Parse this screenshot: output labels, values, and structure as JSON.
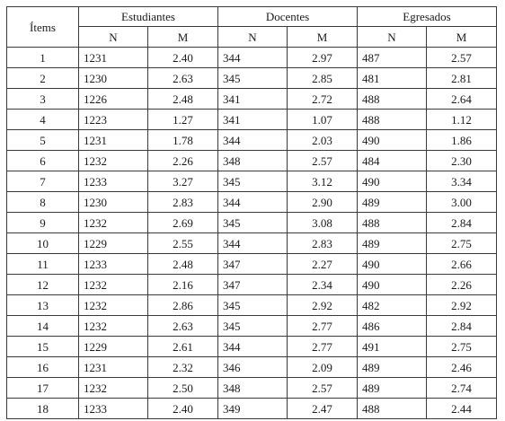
{
  "header": {
    "items_label": "Ítems",
    "groups": [
      "Estudiantes",
      "Docentes",
      "Egresados"
    ],
    "sub_n": "N",
    "sub_m": "M"
  },
  "rows": [
    {
      "item": "1",
      "est_n": "1231",
      "est_m": "2.40",
      "doc_n": "344",
      "doc_m": "2.97",
      "egr_n": "487",
      "egr_m": "2.57"
    },
    {
      "item": "2",
      "est_n": "1230",
      "est_m": "2.63",
      "doc_n": "345",
      "doc_m": "2.85",
      "egr_n": "481",
      "egr_m": "2.81"
    },
    {
      "item": "3",
      "est_n": "1226",
      "est_m": "2.48",
      "doc_n": "341",
      "doc_m": "2.72",
      "egr_n": "488",
      "egr_m": "2.64"
    },
    {
      "item": "4",
      "est_n": "1223",
      "est_m": "1.27",
      "doc_n": "341",
      "doc_m": "1.07",
      "egr_n": "488",
      "egr_m": "1.12"
    },
    {
      "item": "5",
      "est_n": "1231",
      "est_m": "1.78",
      "doc_n": "344",
      "doc_m": "2.03",
      "egr_n": "490",
      "egr_m": "1.86"
    },
    {
      "item": "6",
      "est_n": "1232",
      "est_m": "2.26",
      "doc_n": "348",
      "doc_m": "2.57",
      "egr_n": "484",
      "egr_m": "2.30"
    },
    {
      "item": "7",
      "est_n": "1233",
      "est_m": "3.27",
      "doc_n": "345",
      "doc_m": "3.12",
      "egr_n": "490",
      "egr_m": "3.34"
    },
    {
      "item": "8",
      "est_n": "1230",
      "est_m": "2.83",
      "doc_n": "344",
      "doc_m": "2.90",
      "egr_n": "489",
      "egr_m": "3.00"
    },
    {
      "item": "9",
      "est_n": "1232",
      "est_m": "2.69",
      "doc_n": "345",
      "doc_m": "3.08",
      "egr_n": "488",
      "egr_m": "2.84"
    },
    {
      "item": "10",
      "est_n": "1229",
      "est_m": "2.55",
      "doc_n": "344",
      "doc_m": "2.83",
      "egr_n": "489",
      "egr_m": "2.75"
    },
    {
      "item": "11",
      "est_n": "1233",
      "est_m": "2.48",
      "doc_n": "347",
      "doc_m": "2.27",
      "egr_n": "490",
      "egr_m": "2.66"
    },
    {
      "item": "12",
      "est_n": "1232",
      "est_m": "2.16",
      "doc_n": "347",
      "doc_m": "2.34",
      "egr_n": "490",
      "egr_m": "2.26"
    },
    {
      "item": "13",
      "est_n": "1232",
      "est_m": "2.86",
      "doc_n": "345",
      "doc_m": "2.92",
      "egr_n": "482",
      "egr_m": "2.92"
    },
    {
      "item": "14",
      "est_n": "1232",
      "est_m": "2.63",
      "doc_n": "345",
      "doc_m": "2.77",
      "egr_n": "486",
      "egr_m": "2.84"
    },
    {
      "item": "15",
      "est_n": "1229",
      "est_m": "2.61",
      "doc_n": "344",
      "doc_m": "2.77",
      "egr_n": "491",
      "egr_m": "2.75"
    },
    {
      "item": "16",
      "est_n": "1231",
      "est_m": "2.32",
      "doc_n": "346",
      "doc_m": "2.09",
      "egr_n": "489",
      "egr_m": "2.46"
    },
    {
      "item": "17",
      "est_n": "1232",
      "est_m": "2.50",
      "doc_n": "348",
      "doc_m": "2.57",
      "egr_n": "489",
      "egr_m": "2.74"
    },
    {
      "item": "18",
      "est_n": "1233",
      "est_m": "2.40",
      "doc_n": "349",
      "doc_m": "2.47",
      "egr_n": "488",
      "egr_m": "2.44"
    }
  ]
}
